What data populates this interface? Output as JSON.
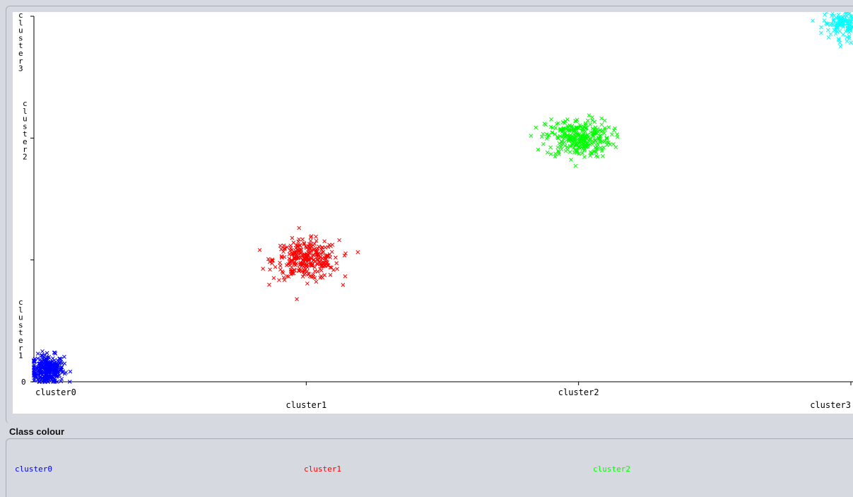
{
  "legend_title": "Class colour",
  "legend": [
    {
      "label": "cluster0",
      "color": "#0000ff"
    },
    {
      "label": "cluster1",
      "color": "#ff0000"
    },
    {
      "label": "cluster2",
      "color": "#00ff00"
    }
  ],
  "chart_data": {
    "type": "scatter",
    "marker": "x",
    "title": "",
    "xlabel": "",
    "ylabel": "",
    "x_ticks": [
      "cluster0",
      "cluster1",
      "cluster2",
      "cluster3"
    ],
    "y_ticks": [
      "0",
      "cluster1",
      "cluster2",
      "cluster3"
    ],
    "xlim": [
      0,
      3
    ],
    "ylim": [
      0,
      3
    ],
    "series": [
      {
        "name": "cluster0",
        "color": "#0000ff",
        "center": [
          0.05,
          0.1
        ],
        "spread": [
          0.03,
          0.06
        ],
        "count": 300
      },
      {
        "name": "cluster1",
        "color": "#ff0000",
        "center": [
          1.0,
          1.0
        ],
        "spread": [
          0.06,
          0.08
        ],
        "count": 300
      },
      {
        "name": "cluster2",
        "color": "#00ff00",
        "center": [
          2.0,
          2.0
        ],
        "spread": [
          0.06,
          0.08
        ],
        "count": 300
      },
      {
        "name": "cluster3",
        "color": "#00ffff",
        "center": [
          2.98,
          2.94
        ],
        "spread": [
          0.04,
          0.06
        ],
        "count": 150
      }
    ]
  }
}
